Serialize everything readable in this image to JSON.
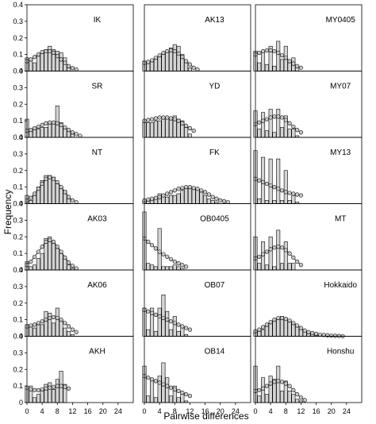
{
  "chart_data": {
    "type": "bar",
    "xlabel": "Pairwise differences",
    "ylabel": "Frequency",
    "ylim": [
      0,
      0.4
    ],
    "yticks": [
      0,
      0.1,
      0.2,
      0.3,
      0.4
    ],
    "ytick_labels": [
      "0",
      "0.1",
      "0.2",
      "0.3",
      "0.4"
    ],
    "xlim": [
      0,
      28
    ],
    "xticks": [
      0,
      4,
      8,
      12,
      16,
      20,
      24
    ],
    "xtick_labels": [
      "0",
      "4",
      "8",
      "12",
      "16",
      "20",
      "24"
    ],
    "panels": [
      {
        "label": "IK",
        "bars": [
          0.08,
          0.07,
          0.05,
          0.09,
          0.11,
          0.13,
          0.15,
          0.13,
          0.12,
          0.11,
          0.08,
          0.02,
          0.0
        ],
        "expected": [
          0.06,
          0.07,
          0.085,
          0.1,
          0.115,
          0.12,
          0.12,
          0.11,
          0.09,
          0.07,
          0.05,
          0.03,
          0.018,
          0.01
        ]
      },
      {
        "label": "AK13",
        "bars": [
          0.06,
          0.05,
          0.06,
          0.08,
          0.09,
          0.11,
          0.12,
          0.14,
          0.16,
          0.15,
          0.1,
          0.06,
          0.02,
          0.0
        ],
        "expected": [
          0.05,
          0.055,
          0.065,
          0.08,
          0.095,
          0.11,
          0.12,
          0.125,
          0.12,
          0.105,
          0.085,
          0.06,
          0.04,
          0.02,
          0.01
        ]
      },
      {
        "label": "MY0405",
        "bars": [
          0.12,
          0.05,
          0.12,
          0.04,
          0.15,
          0.03,
          0.18,
          0.07,
          0.15,
          0.06,
          0.08,
          0.03,
          0.0
        ],
        "expected": [
          0.1,
          0.11,
          0.12,
          0.125,
          0.125,
          0.12,
          0.11,
          0.095,
          0.08,
          0.06,
          0.045,
          0.03,
          0.02
        ]
      },
      {
        "label": "SR",
        "bars": [
          0.11,
          0.05,
          0.06,
          0.05,
          0.06,
          0.06,
          0.08,
          0.09,
          0.19,
          0.09,
          0.06,
          0.04,
          0.02,
          0.0
        ],
        "expected": [
          0.04,
          0.045,
          0.055,
          0.065,
          0.075,
          0.085,
          0.09,
          0.09,
          0.085,
          0.075,
          0.06,
          0.045,
          0.03,
          0.02,
          0.01
        ]
      },
      {
        "label": "YD",
        "bars": [
          0.09,
          0.09,
          0.09,
          0.1,
          0.1,
          0.11,
          0.12,
          0.12,
          0.13,
          0.11,
          0.1,
          0.06,
          0.02,
          0.0
        ],
        "expected": [
          0.1,
          0.105,
          0.11,
          0.115,
          0.12,
          0.12,
          0.12,
          0.115,
          0.11,
          0.1,
          0.085,
          0.07,
          0.055,
          0.04
        ]
      },
      {
        "label": "MY07",
        "bars": [
          0.16,
          0.05,
          0.15,
          0.04,
          0.17,
          0.03,
          0.17,
          0.06,
          0.13,
          0.05,
          0.05,
          0.01,
          0.0
        ],
        "expected": [
          0.08,
          0.09,
          0.1,
          0.11,
          0.12,
          0.125,
          0.125,
          0.12,
          0.105,
          0.085,
          0.065,
          0.045,
          0.03
        ]
      },
      {
        "label": "NT",
        "bars": [
          0.05,
          0.02,
          0.05,
          0.1,
          0.14,
          0.17,
          0.17,
          0.16,
          0.12,
          0.1,
          0.08,
          0.03,
          0.0
        ],
        "expected": [
          0.02,
          0.035,
          0.06,
          0.09,
          0.12,
          0.15,
          0.16,
          0.15,
          0.13,
          0.1,
          0.07,
          0.04,
          0.02,
          0.01
        ]
      },
      {
        "label": "FK",
        "bars": [
          0.02,
          0.02,
          0.03,
          0.03,
          0.06,
          0.05,
          0.04,
          0.05,
          0.05,
          0.06,
          0.08,
          0.09,
          0.1,
          0.09,
          0.09,
          0.07,
          0.05,
          0.03,
          0.02,
          0.01,
          0.0
        ],
        "expected": [
          0.02,
          0.025,
          0.03,
          0.035,
          0.04,
          0.05,
          0.06,
          0.07,
          0.08,
          0.09,
          0.095,
          0.1,
          0.1,
          0.095,
          0.09,
          0.08,
          0.07,
          0.055,
          0.04,
          0.03,
          0.02,
          0.015,
          0.01
        ]
      },
      {
        "label": "MY13",
        "bars": [
          0.32,
          0.03,
          0.28,
          0.02,
          0.27,
          0.02,
          0.27,
          0.02,
          0.2,
          0.02,
          0.05,
          0.01,
          0.0
        ],
        "expected": [
          0.15,
          0.14,
          0.13,
          0.12,
          0.11,
          0.1,
          0.09,
          0.08,
          0.07,
          0.065,
          0.06,
          0.055,
          0.05
        ]
      },
      {
        "label": "AK03",
        "bars": [
          0.05,
          0.02,
          0.03,
          0.07,
          0.1,
          0.19,
          0.2,
          0.16,
          0.13,
          0.1,
          0.07,
          0.03,
          0.01,
          0.0
        ],
        "expected": [
          0.03,
          0.05,
          0.08,
          0.11,
          0.14,
          0.17,
          0.18,
          0.17,
          0.14,
          0.11,
          0.075,
          0.045,
          0.025,
          0.01
        ]
      },
      {
        "label": "OB0405",
        "bars": [
          0.35,
          0.04,
          0.03,
          0.02,
          0.25,
          0.02,
          0.02,
          0.02,
          0.03,
          0.02,
          0.01,
          0.0
        ],
        "expected": [
          0.19,
          0.17,
          0.15,
          0.13,
          0.11,
          0.095,
          0.08,
          0.065,
          0.05,
          0.04,
          0.03,
          0.02
        ]
      },
      {
        "label": "MT",
        "bars": [
          0.2,
          0.04,
          0.17,
          0.03,
          0.2,
          0.02,
          0.24,
          0.04,
          0.17,
          0.04,
          0.04,
          0.0
        ],
        "expected": [
          0.07,
          0.08,
          0.095,
          0.11,
          0.125,
          0.135,
          0.14,
          0.135,
          0.12,
          0.1,
          0.075,
          0.05,
          0.03
        ]
      },
      {
        "label": "AK06",
        "bars": [
          0.07,
          0.06,
          0.05,
          0.07,
          0.07,
          0.15,
          0.14,
          0.08,
          0.17,
          0.1,
          0.05,
          0.03,
          0.01,
          0.0
        ],
        "expected": [
          0.06,
          0.065,
          0.07,
          0.08,
          0.09,
          0.1,
          0.11,
          0.115,
          0.11,
          0.1,
          0.08,
          0.06,
          0.04,
          0.025
        ]
      },
      {
        "label": "OB07",
        "bars": [
          0.17,
          0.04,
          0.17,
          0.03,
          0.17,
          0.25,
          0.15,
          0.04,
          0.12,
          0.03,
          0.06,
          0.01,
          0.0
        ],
        "expected": [
          0.16,
          0.15,
          0.14,
          0.13,
          0.12,
          0.11,
          0.1,
          0.09,
          0.08,
          0.07,
          0.06,
          0.05,
          0.04
        ]
      },
      {
        "label": "Hokkaido",
        "bars": [
          0.03,
          0.03,
          0.04,
          0.06,
          0.08,
          0.1,
          0.11,
          0.12,
          0.11,
          0.1,
          0.08,
          0.06,
          0.04,
          0.03,
          0.02,
          0.02,
          0.01,
          0.01,
          0.01,
          0.005,
          0.005,
          0.003,
          0.002,
          0.0
        ],
        "expected": [
          0.03,
          0.04,
          0.055,
          0.07,
          0.085,
          0.1,
          0.11,
          0.11,
          0.105,
          0.095,
          0.08,
          0.065,
          0.05,
          0.035,
          0.025,
          0.02,
          0.015,
          0.01,
          0.008,
          0.006,
          0.004,
          0.003,
          0.002,
          0.001
        ]
      },
      {
        "label": "AKH",
        "bars": [
          0.09,
          0.1,
          0.03,
          0.05,
          0.08,
          0.11,
          0.12,
          0.08,
          0.14,
          0.19,
          0.11,
          0.0
        ],
        "expected": [
          0.09,
          0.08,
          0.075,
          0.075,
          0.08,
          0.085,
          0.09,
          0.095,
          0.1,
          0.1,
          0.095,
          0.085
        ]
      },
      {
        "label": "OB14",
        "bars": [
          0.22,
          0.04,
          0.14,
          0.03,
          0.16,
          0.24,
          0.15,
          0.04,
          0.1,
          0.03,
          0.05,
          0.01,
          0.0
        ],
        "expected": [
          0.16,
          0.15,
          0.14,
          0.13,
          0.12,
          0.11,
          0.1,
          0.09,
          0.08,
          0.07,
          0.06,
          0.05,
          0.04
        ]
      },
      {
        "label": "Honshu",
        "bars": [
          0.22,
          0.04,
          0.15,
          0.05,
          0.16,
          0.14,
          0.22,
          0.07,
          0.13,
          0.07,
          0.05,
          0.02,
          0.01,
          0.0
        ],
        "expected": [
          0.07,
          0.075,
          0.085,
          0.1,
          0.115,
          0.125,
          0.13,
          0.125,
          0.115,
          0.1,
          0.075,
          0.05,
          0.03,
          0.015
        ]
      }
    ]
  }
}
